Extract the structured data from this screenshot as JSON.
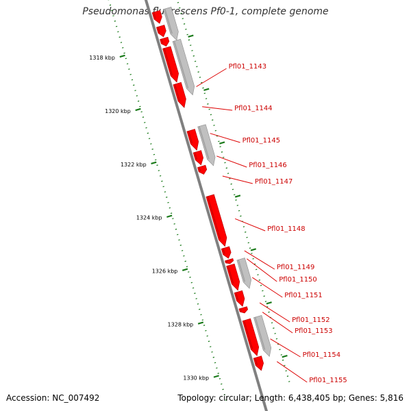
{
  "title": "Pseudomonas fluorescens Pf0-1, complete genome",
  "footer": {
    "accession": "Accession: NC_007492",
    "summary": "Topology: circular; Length: 6,438,405 bp; Genes: 5,816"
  },
  "colors": {
    "backbone": "#808080",
    "gene_forward": "#ff0000",
    "gene_forward_dark": "#b00000",
    "gene_other": "#c0c0c0",
    "gene_other_dark": "#8c8c8c",
    "tick": "#1a7a1a",
    "label": "#cc0000",
    "leader": "#dd0000"
  },
  "kbp_ticks": [
    {
      "kbp": 1318,
      "label": "1318 kbp"
    },
    {
      "kbp": 1320,
      "label": "1320 kbp"
    },
    {
      "kbp": 1322,
      "label": "1322 kbp"
    },
    {
      "kbp": 1324,
      "label": "1324 kbp"
    },
    {
      "kbp": 1326,
      "label": "1326 kbp"
    },
    {
      "kbp": 1328,
      "label": "1328 kbp"
    },
    {
      "kbp": 1330,
      "label": "1330 kbp"
    }
  ],
  "genes_track1": [
    {
      "start": 1316.8,
      "end": 1317.25
    },
    {
      "start": 1317.35,
      "end": 1317.75
    },
    {
      "start": 1317.8,
      "end": 1318.1
    },
    {
      "start": 1318.15,
      "end": 1319.45
    },
    {
      "start": 1319.5,
      "end": 1320.4
    },
    {
      "start": 1321.25,
      "end": 1322.0
    },
    {
      "start": 1322.05,
      "end": 1322.55
    },
    {
      "start": 1322.6,
      "end": 1322.9
    },
    {
      "start": 1323.7,
      "end": 1325.6
    },
    {
      "start": 1325.65,
      "end": 1326.05
    },
    {
      "start": 1326.1,
      "end": 1326.25
    },
    {
      "start": 1326.3,
      "end": 1327.25
    },
    {
      "start": 1327.3,
      "end": 1327.85
    },
    {
      "start": 1327.9,
      "end": 1328.1
    },
    {
      "start": 1328.35,
      "end": 1329.7
    },
    {
      "start": 1329.75,
      "end": 1330.25
    }
  ],
  "genes_track2": [
    {
      "start": 1316.8,
      "end": 1318.0
    },
    {
      "start": 1318.0,
      "end": 1320.05
    },
    {
      "start": 1321.2,
      "end": 1322.7
    },
    {
      "start": 1326.2,
      "end": 1327.3
    },
    {
      "start": 1328.35,
      "end": 1329.85
    }
  ],
  "gene_labels": [
    {
      "name": "Pfl01_1143",
      "kbp": 1319.8
    },
    {
      "name": "Pfl01_1144",
      "kbp": 1320.55
    },
    {
      "name": "Pfl01_1145",
      "kbp": 1321.55
    },
    {
      "name": "Pfl01_1146",
      "kbp": 1322.4
    },
    {
      "name": "Pfl01_1147",
      "kbp": 1323.15
    },
    {
      "name": "Pfl01_1148",
      "kbp": 1324.75
    },
    {
      "name": "Pfl01_1149",
      "kbp": 1325.95
    },
    {
      "name": "Pfl01_1150",
      "kbp": 1326.25
    },
    {
      "name": "Pfl01_1151",
      "kbp": 1326.95
    },
    {
      "name": "Pfl01_1152",
      "kbp": 1327.9
    },
    {
      "name": "Pfl01_1153",
      "kbp": 1328.25
    },
    {
      "name": "Pfl01_1154",
      "kbp": 1329.25
    },
    {
      "name": "Pfl01_1155",
      "kbp": 1330.1
    }
  ]
}
